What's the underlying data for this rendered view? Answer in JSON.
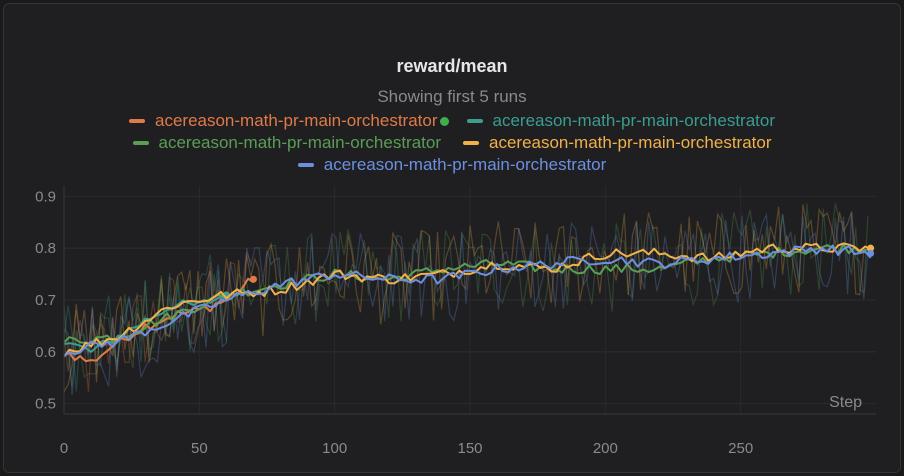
{
  "colors": {
    "bg": "#1f1f21",
    "runs": [
      "#e07a47",
      "#3a9d8f",
      "#5a9e55",
      "#f2b04a",
      "#6d8fe0"
    ],
    "dot_green": "#3fb049"
  },
  "chart_data": {
    "type": "line",
    "title": "reward/mean",
    "subtitle": "Showing first 5 runs",
    "xlabel": "Step",
    "ylabel": "",
    "xlim": [
      0,
      300
    ],
    "ylim": [
      0.48,
      0.92
    ],
    "xticks": [
      0,
      50,
      100,
      150,
      200,
      250
    ],
    "yticks": [
      0.5,
      0.6,
      0.7,
      0.8,
      0.9
    ],
    "xtick_labels": [
      "0",
      "50",
      "100",
      "150",
      "200",
      "250"
    ],
    "ytick_labels": [
      "0.5",
      "0.6",
      "0.7",
      "0.8",
      "0.9"
    ],
    "legend": [
      "acereason-math-pr-main-orchestrator",
      "acereason-math-pr-main-orchestrator",
      "acereason-math-pr-main-orchestrator",
      "acereason-math-pr-main-orchestrator",
      "acereason-math-pr-main-orchestrator"
    ],
    "series": [
      {
        "name": "acereason-math-pr-main-orchestrator",
        "color": "#e07a47",
        "x": [
          0,
          10,
          20,
          30,
          40,
          50,
          60,
          70
        ],
        "values": [
          0.6,
          0.58,
          0.62,
          0.65,
          0.67,
          0.68,
          0.7,
          0.74
        ]
      },
      {
        "name": "acereason-math-pr-main-orchestrator",
        "color": "#3a9d8f",
        "x": [
          0,
          10,
          20,
          30,
          40,
          50,
          60
        ],
        "values": [
          0.62,
          0.6,
          0.63,
          0.66,
          0.69,
          0.69,
          0.71
        ]
      },
      {
        "name": "acereason-math-pr-main-orchestrator",
        "color": "#5a9e55",
        "x": [
          0,
          20,
          40,
          60,
          80,
          100,
          120,
          140,
          160,
          180,
          200,
          220,
          240,
          260,
          280,
          298
        ],
        "values": [
          0.62,
          0.63,
          0.67,
          0.71,
          0.73,
          0.75,
          0.74,
          0.76,
          0.77,
          0.76,
          0.76,
          0.76,
          0.78,
          0.79,
          0.8,
          0.8
        ]
      },
      {
        "name": "acereason-math-pr-main-orchestrator",
        "color": "#f2b04a",
        "x": [
          0,
          20,
          40,
          60,
          80,
          100,
          120,
          140,
          160,
          180,
          200,
          220,
          240,
          260,
          280,
          298
        ],
        "values": [
          0.6,
          0.63,
          0.69,
          0.71,
          0.72,
          0.75,
          0.74,
          0.75,
          0.77,
          0.76,
          0.79,
          0.79,
          0.78,
          0.8,
          0.8,
          0.8
        ]
      },
      {
        "name": "acereason-math-pr-main-orchestrator",
        "color": "#6d8fe0",
        "x": [
          0,
          20,
          40,
          60,
          80,
          100,
          120,
          140,
          160,
          180,
          200,
          220,
          240,
          260,
          280,
          298
        ],
        "values": [
          0.6,
          0.62,
          0.66,
          0.7,
          0.73,
          0.75,
          0.74,
          0.74,
          0.76,
          0.77,
          0.78,
          0.77,
          0.78,
          0.79,
          0.8,
          0.79
        ]
      }
    ]
  }
}
